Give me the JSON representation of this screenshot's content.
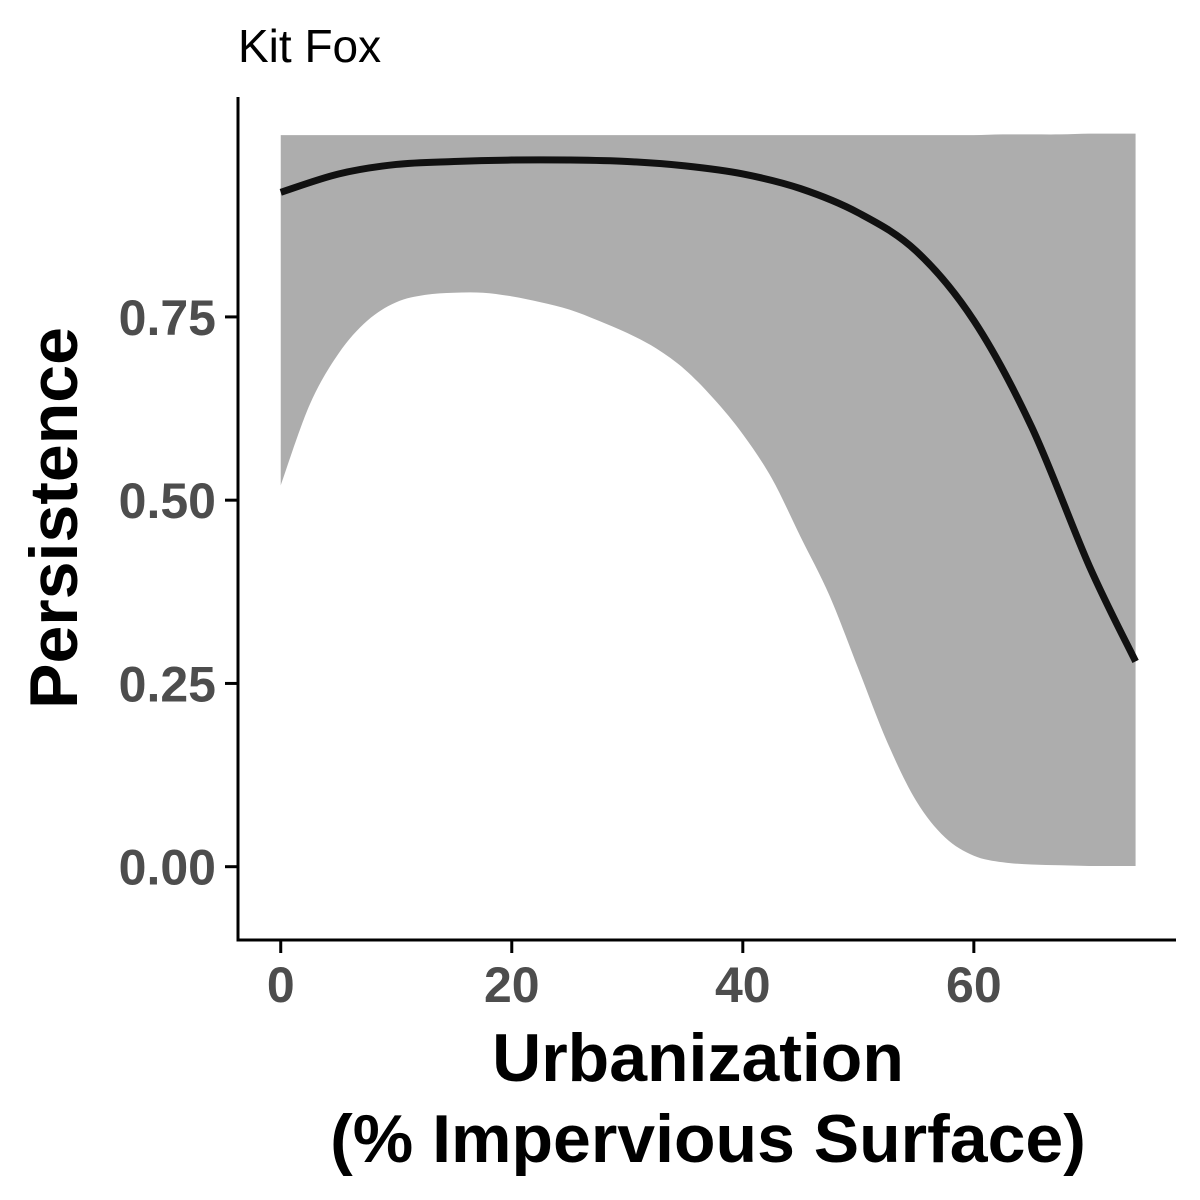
{
  "chart_data": {
    "type": "line",
    "title": "Kit Fox",
    "xlabel_lines": [
      "Urbanization",
      "(% Impervious Surface)"
    ],
    "ylabel": "Persistence",
    "xlim": [
      -3.7,
      77.5
    ],
    "ylim": [
      -0.1,
      1.05
    ],
    "xticks": [
      0,
      20,
      40,
      60
    ],
    "xtick_labels": [
      "0",
      "20",
      "40",
      "60"
    ],
    "yticks": [
      0,
      0.25,
      0.5,
      0.75
    ],
    "ytick_labels": [
      "0.00",
      "0.25",
      "0.50",
      "0.75"
    ],
    "grid": false,
    "legend": "none",
    "series": [
      {
        "x": [
          0,
          5,
          10,
          15,
          20,
          25,
          30,
          35,
          40,
          45,
          50,
          55,
          60,
          65,
          70,
          74
        ],
        "y": [
          0.92,
          0.945,
          0.958,
          0.962,
          0.964,
          0.964,
          0.962,
          0.956,
          0.945,
          0.925,
          0.892,
          0.84,
          0.745,
          0.6,
          0.41,
          0.28
        ],
        "color": "#111111"
      }
    ],
    "ribbon": {
      "x": [
        0,
        2.5,
        5,
        7.5,
        10,
        12.5,
        15,
        17.5,
        20,
        22.5,
        25,
        27.5,
        30,
        32.5,
        35,
        37.5,
        40,
        42.5,
        45,
        47.5,
        50,
        52.5,
        55,
        57.5,
        60,
        62.5,
        65,
        67.5,
        70,
        72.5,
        74
      ],
      "lower": [
        0.52,
        0.63,
        0.7,
        0.745,
        0.77,
        0.78,
        0.783,
        0.783,
        0.778,
        0.77,
        0.76,
        0.745,
        0.728,
        0.707,
        0.678,
        0.638,
        0.59,
        0.53,
        0.45,
        0.37,
        0.27,
        0.17,
        0.09,
        0.04,
        0.015,
        0.006,
        0.003,
        0.002,
        0.001,
        0.001,
        0.001
      ],
      "upper": [
        0.998,
        0.998,
        0.998,
        0.998,
        0.998,
        0.998,
        0.998,
        0.998,
        0.998,
        0.998,
        0.998,
        0.998,
        0.998,
        0.998,
        0.998,
        0.998,
        0.998,
        0.998,
        0.998,
        0.998,
        0.998,
        0.998,
        0.998,
        0.998,
        0.998,
        0.999,
        0.999,
        0.999,
        1.0,
        1.0,
        1.0
      ],
      "color": "#adadad"
    },
    "axis_color": "#000000",
    "tick_label_color": "#4d4d4d"
  }
}
